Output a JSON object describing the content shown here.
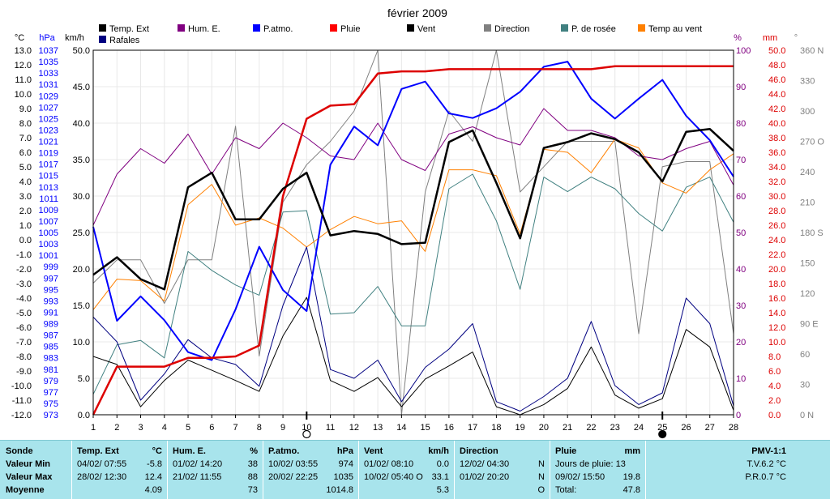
{
  "chart_data": {
    "type": "line",
    "title": "février 2009",
    "x": [
      1,
      2,
      3,
      4,
      5,
      6,
      7,
      8,
      9,
      10,
      11,
      12,
      13,
      14,
      15,
      16,
      17,
      18,
      19,
      20,
      21,
      22,
      23,
      24,
      25,
      26,
      27,
      28
    ],
    "xlim": [
      1,
      28
    ],
    "axes": {
      "temp": {
        "label": "°C",
        "ylim": [
          -12,
          13
        ],
        "ticks": [
          "13.0",
          "12.0",
          "11.0",
          "10.0",
          "9.0",
          "8.0",
          "7.0",
          "6.0",
          "5.0",
          "4.0",
          "3.0",
          "2.0",
          "1.0",
          "0.0",
          "-1.0",
          "-2.0",
          "-3.0",
          "-4.0",
          "-5.0",
          "-6.0",
          "-7.0",
          "-8.0",
          "-9.0",
          "-10.0",
          "-11.0",
          "-12.0"
        ]
      },
      "pressure": {
        "label": "hPa",
        "ylim": [
          973,
          1037
        ],
        "ticks": [
          "1037",
          "1035",
          "1033",
          "1031",
          "1029",
          "1027",
          "1025",
          "1023",
          "1021",
          "1019",
          "1017",
          "1015",
          "1013",
          "1011",
          "1009",
          "1007",
          "1005",
          "1003",
          "1001",
          "999",
          "997",
          "995",
          "993",
          "991",
          "989",
          "987",
          "985",
          "983",
          "981",
          "979",
          "977",
          "975",
          "973"
        ]
      },
      "wind": {
        "label": "km/h",
        "ylim": [
          0,
          50
        ],
        "ticks": [
          "50.0",
          "45.0",
          "40.0",
          "35.0",
          "30.0",
          "25.0",
          "20.0",
          "15.0",
          "10.0",
          "5.0",
          "0.0"
        ]
      },
      "humidity": {
        "label": "%",
        "ylim": [
          0,
          100
        ],
        "ticks": [
          "100",
          "90",
          "80",
          "70",
          "60",
          "50",
          "40",
          "30",
          "20",
          "10",
          "0"
        ]
      },
      "rain": {
        "label": "mm",
        "ylim": [
          0,
          50
        ],
        "ticks": [
          "50.0",
          "48.0",
          "46.0",
          "44.0",
          "42.0",
          "40.0",
          "38.0",
          "36.0",
          "34.0",
          "32.0",
          "30.0",
          "28.0",
          "26.0",
          "24.0",
          "22.0",
          "20.0",
          "18.0",
          "16.0",
          "14.0",
          "12.0",
          "10.0",
          "8.0",
          "6.0",
          "4.0",
          "2.0",
          "0.0"
        ]
      },
      "direction": {
        "label": "°",
        "ylim": [
          0,
          360
        ],
        "ticks": [
          "360 N",
          "330",
          "300",
          "270 O",
          "240",
          "210",
          "180 S",
          "150",
          "120",
          "90 E",
          "60",
          "30",
          "0 N"
        ]
      }
    },
    "legend": [
      {
        "name": "Temp. Ext",
        "color": "#000000"
      },
      {
        "name": "Hum. E.",
        "color": "#800080"
      },
      {
        "name": "P.atmo.",
        "color": "#0000ff"
      },
      {
        "name": "Pluie",
        "color": "#ff0000"
      },
      {
        "name": "Vent",
        "color": "#000000"
      },
      {
        "name": "Direction",
        "color": "#808080"
      },
      {
        "name": "P. de rosée",
        "color": "#408080"
      },
      {
        "name": "Temp au vent",
        "color": "#ff8000"
      },
      {
        "name": "Rafales",
        "color": "#000080"
      }
    ],
    "moon_markers": [
      {
        "x": 10,
        "phase": "first-quarter"
      },
      {
        "x": 25,
        "phase": "new"
      }
    ],
    "series": [
      {
        "name": "Temp. Ext",
        "axis": "temp",
        "color": "#000000",
        "width": 2.5,
        "values": [
          -2.4,
          -1.2,
          -2.7,
          -3.4,
          3.6,
          4.6,
          1.4,
          1.4,
          3.5,
          4.6,
          0.3,
          0.6,
          0.4,
          -0.3,
          -0.2,
          6.7,
          7.5,
          3.9,
          0.1,
          6.3,
          6.7,
          7.3,
          6.9,
          6.0,
          4.0,
          7.4,
          7.6,
          6.1
        ]
      },
      {
        "name": "Hum. E.",
        "axis": "humidity",
        "color": "#800080",
        "width": 1,
        "values": [
          52,
          66,
          73,
          69,
          77,
          66,
          76,
          73,
          80,
          76,
          71,
          70,
          80,
          70,
          67,
          77,
          79,
          76,
          74,
          84,
          78,
          78,
          76,
          71,
          70,
          73,
          75,
          63
        ]
      },
      {
        "name": "P.atmo.",
        "axis": "pressure",
        "color": "#0000ff",
        "width": 2,
        "values": [
          1006,
          989.5,
          993.8,
          989.6,
          984,
          982.6,
          991.5,
          1002.5,
          994.9,
          991.2,
          1016.9,
          1023.6,
          1020.3,
          1030.2,
          1031.5,
          1025.9,
          1025.1,
          1026.8,
          1029.7,
          1034.1,
          1035,
          1028.5,
          1025,
          1028.5,
          1031.8,
          1025.5,
          1021.2,
          1014.8
        ]
      },
      {
        "name": "Pluie",
        "axis": "rain",
        "color": "#dd0000",
        "width": 2.5,
        "values": [
          0,
          6.6,
          6.6,
          6.6,
          7.8,
          7.8,
          8,
          9.5,
          30,
          40.6,
          42.4,
          42.6,
          46.8,
          47.1,
          47.1,
          47.4,
          47.4,
          47.4,
          47.4,
          47.4,
          47.4,
          47.4,
          47.8,
          47.8,
          47.8,
          47.8,
          47.8,
          47.8
        ]
      },
      {
        "name": "Vent",
        "axis": "wind",
        "color": "#000000",
        "width": 1,
        "values": [
          8,
          6.9,
          1.1,
          4.7,
          7.5,
          6.1,
          4.7,
          3.2,
          10.8,
          16.1,
          4.7,
          3.2,
          5.1,
          1.1,
          4.9,
          6.7,
          8.6,
          1.1,
          0,
          1.4,
          3.6,
          9.3,
          2.7,
          0.9,
          2.2,
          11.7,
          9.3,
          0.6
        ]
      },
      {
        "name": "Direction",
        "axis": "direction",
        "color": "#808080",
        "width": 1,
        "values": [
          130,
          153,
          153,
          110,
          153,
          153,
          285,
          58,
          210,
          247,
          270,
          300,
          360,
          0,
          220,
          300,
          270,
          360,
          220,
          245,
          270,
          270,
          270,
          80,
          245,
          250,
          250,
          80
        ]
      },
      {
        "name": "P. de rosée",
        "axis": "temp",
        "color": "#408080",
        "width": 1,
        "values": [
          -10.6,
          -7.2,
          -6.9,
          -8.1,
          -0.8,
          -2.1,
          -3.1,
          -3.8,
          1.9,
          2,
          -5.1,
          -5,
          -3.2,
          -5.9,
          -5.9,
          3.5,
          4.5,
          1.3,
          -3.4,
          4.3,
          3.3,
          4.3,
          3.5,
          1.8,
          0.6,
          3.6,
          4.3,
          1.2
        ]
      },
      {
        "name": "Temp au vent",
        "axis": "temp",
        "color": "#ff8000",
        "width": 1,
        "values": [
          -4.8,
          -2.7,
          -2.8,
          -4.2,
          2.4,
          3.8,
          1,
          1.5,
          0.8,
          -0.5,
          0.7,
          1.6,
          1.1,
          1.3,
          -0.8,
          4.8,
          4.8,
          4.4,
          0.4,
          6.2,
          6,
          4.6,
          6.9,
          6.3,
          3.9,
          3.2,
          4.8,
          5.9
        ]
      },
      {
        "name": "Rafales",
        "axis": "wind",
        "color": "#000080",
        "width": 1,
        "values": [
          13.4,
          10,
          2,
          5.6,
          10.3,
          7.8,
          6.9,
          3.9,
          15,
          23,
          6.2,
          5,
          7.5,
          1.8,
          6.5,
          9,
          12.5,
          1.8,
          0.5,
          2.5,
          5,
          12.8,
          4,
          1.4,
          3,
          16,
          12.5,
          1.2
        ]
      }
    ]
  },
  "stats": {
    "sonde": {
      "title": "Sonde",
      "rows": [
        "Valeur Min",
        "Valeur Max",
        "Moyenne"
      ]
    },
    "temp": {
      "title": "Temp. Ext",
      "unit": "°C",
      "min_time": "04/02/  07:55",
      "min_val": "-5.8",
      "max_time": "28/02/  12:30",
      "max_val": "12.4",
      "avg": "4.09"
    },
    "hum": {
      "title": "Hum. E.",
      "unit": "%",
      "min_time": "01/02/  14:20",
      "min_val": "38",
      "max_time": "21/02/  11:55",
      "max_val": "88",
      "avg": "73"
    },
    "press": {
      "title": "P.atmo.",
      "unit": "hPa",
      "min_time": "10/02/  03:55",
      "min_val": "974",
      "max_time": "20/02/  22:25",
      "max_val": "1035",
      "avg": "1014.8"
    },
    "wind": {
      "title": "Vent",
      "unit": "km/h",
      "min_time": "01/02/  08:10",
      "min_val": "0.0",
      "max_time": "10/02/  05:40  O",
      "max_val": "33.1",
      "avg": "5.3"
    },
    "dir": {
      "title": "Direction",
      "min_time": "12/02/  04:30",
      "min_val": "N",
      "max_time": "01/02/  20:20",
      "max_val": "N",
      "avg": "O"
    },
    "rain": {
      "title": "Pluie",
      "unit": "mm",
      "line1": "Jours de pluie: 13",
      "max_time": "09/02/  15:50",
      "max_val": "19.8",
      "total_label": "Total:",
      "total": "47.8"
    },
    "pmv": {
      "title": "PMV-1:1",
      "line1": "T.V.6.2 °C",
      "line2": "P.R.0.7 °C"
    }
  }
}
